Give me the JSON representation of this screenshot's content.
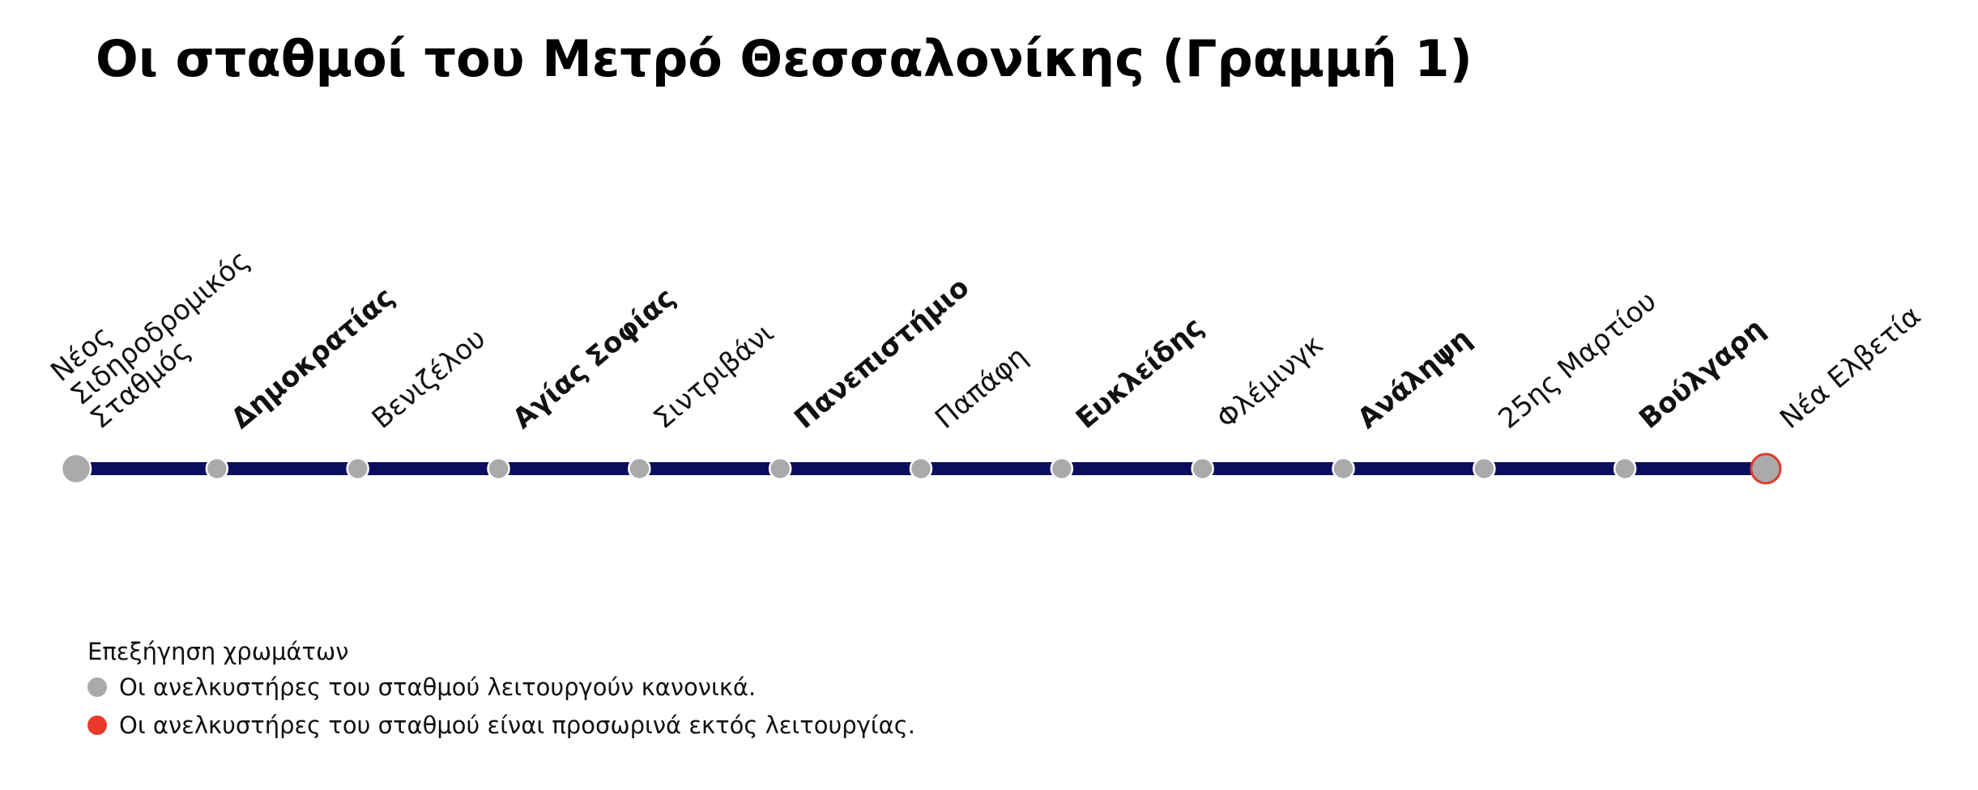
{
  "title": "Οι σταθμοί του Μετρό Θεσσαλονίκης (Γραμμή 1)",
  "line_color": "#0d0d5e",
  "stations": [
    {
      "label": [
        "Νέος",
        "Σιδηροδρομικός",
        "Σταθμός"
      ],
      "color": "#aaaaaa"
    },
    {
      "label": [
        "Δημοκρατίας"
      ],
      "color": "#aaaaaa"
    },
    {
      "label": [
        "Βενιζέλου"
      ],
      "color": "#aaaaaa"
    },
    {
      "label": [
        "Αγίας Σοφίας"
      ],
      "color": "#aaaaaa"
    },
    {
      "label": [
        "Σιντριβάνι"
      ],
      "color": "#aaaaaa"
    },
    {
      "label": [
        "Πανεπιστήμιο"
      ],
      "color": "#aaaaaa"
    },
    {
      "label": [
        "Παπάφη"
      ],
      "color": "#aaaaaa"
    },
    {
      "label": [
        "Ευκλείδης"
      ],
      "color": "#aaaaaa"
    },
    {
      "label": [
        "Φλέμινγκ"
      ],
      "color": "#aaaaaa"
    },
    {
      "label": [
        "Ανάληψη"
      ],
      "color": "#aaaaaa"
    },
    {
      "label": [
        "25ης Μαρτίου"
      ],
      "color": "#aaaaaa"
    },
    {
      "label": [
        "Βούλγαρη"
      ],
      "color": "#aaaaaa"
    },
    {
      "label": [
        "Νέα Ελβετία"
      ],
      "color": "#aaaaaa",
      "border": "#e03a2e"
    }
  ],
  "legend": {
    "title": "Επεξήγηση χρωμάτων",
    "items": [
      {
        "label": "Οι ανελκυστήρες του σταθμού λειτουργούν κανονικά.",
        "color": "#aaaaaa"
      },
      {
        "label": "Οι ανελκυστήρες του σταθμού είναι προσωρινά εκτός λειτουργίας.",
        "color": "#e8392b"
      }
    ]
  }
}
